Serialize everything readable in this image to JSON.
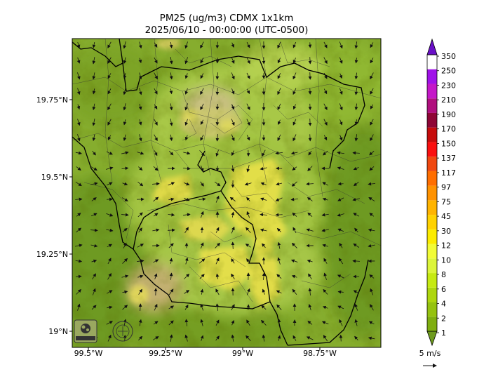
{
  "title": {
    "line1": "PM25 (ug/m3) CDMX 1x1km",
    "line2": "2025/06/10 - 00:00:00 (UTC-0500)"
  },
  "axes": {
    "x_ticks": [
      {
        "value": -99.5,
        "label": "99.5°W"
      },
      {
        "value": -99.25,
        "label": "99.25°W"
      },
      {
        "value": -99.0,
        "label": "99°W"
      },
      {
        "value": -98.75,
        "label": "98.75°W"
      }
    ],
    "y_ticks": [
      {
        "value": 19.0,
        "label": "19°N"
      },
      {
        "value": 19.25,
        "label": "19.25°N"
      },
      {
        "value": 19.5,
        "label": "19.5°N"
      },
      {
        "value": 19.75,
        "label": "19.75°N"
      }
    ]
  },
  "colorbar": {
    "levels": [
      "1",
      "2",
      "4",
      "6",
      "8",
      "10",
      "12",
      "30",
      "45",
      "75",
      "97",
      "117",
      "137",
      "150",
      "170",
      "190",
      "210",
      "230",
      "250",
      "350"
    ],
    "colors": [
      "#6d9a1e",
      "#7fae10",
      "#95c210",
      "#aed60e",
      "#c6ea12",
      "#dcf53a",
      "#f2fc36",
      "#fcec00",
      "#ffd200",
      "#ffb400",
      "#ff9200",
      "#ff6e00",
      "#f04810",
      "#fa1010",
      "#c60c0c",
      "#8e0636",
      "#b0107e",
      "#c418c8",
      "#a012e8",
      "#6a10c8"
    ]
  },
  "wind_scale": {
    "label": "5 m/s"
  },
  "logos": {
    "left": "SEDEMA",
    "right": "CIUDAD DE MÉXICO"
  },
  "colors": {
    "frame": "#000000",
    "terrain_dark": "#6f9a2a",
    "terrain_light": "#b9d24c",
    "pollution": "#ece24e"
  }
}
